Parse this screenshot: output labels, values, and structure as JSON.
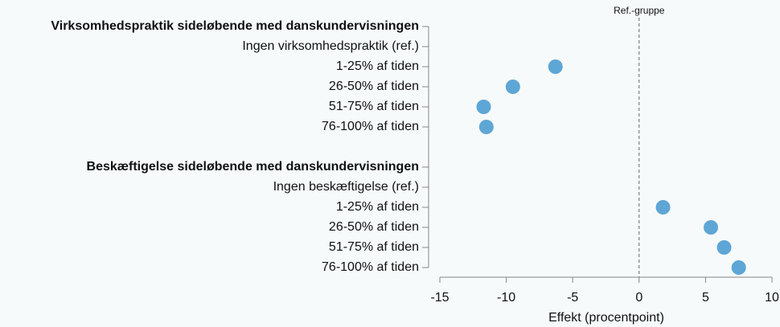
{
  "chart_data": {
    "type": "dot",
    "categories": [
      "Virksomhedspraktik sideløbende med danskundervisningen",
      "Ingen virksomhedspraktik (ref.)",
      "1-25% af tiden",
      "26-50% af tiden",
      "51-75% af tiden",
      "76-100% af tiden",
      null,
      "Beskæftigelse sideløbende med danskundervisningen",
      "Ingen beskæftigelse (ref.)",
      "1-25% af tiden",
      "26-50% af tiden",
      "51-75% af tiden",
      "76-100% af tiden"
    ],
    "values": [
      null,
      null,
      -6.3,
      -9.5,
      -11.7,
      -11.5,
      null,
      null,
      null,
      1.8,
      5.4,
      6.4,
      7.5
    ],
    "bold": [
      0,
      7
    ],
    "color": "#5ea6d6",
    "xlabel": "Effekt (procentpoint)",
    "xlim": [
      -15,
      10
    ],
    "xticks": [
      -15,
      -10,
      -5,
      0,
      5,
      10
    ],
    "reference_line": {
      "value": 0,
      "label": "Ref.-gruppe"
    }
  }
}
